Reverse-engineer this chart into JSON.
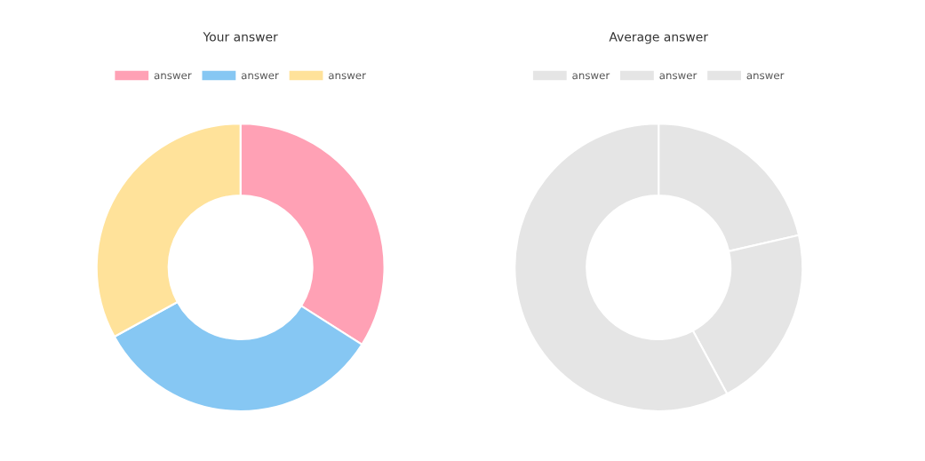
{
  "chart_data": [
    {
      "type": "donut",
      "title": "Your answer",
      "categories": [
        "answer",
        "answer",
        "answer"
      ],
      "values": [
        34,
        33,
        33
      ],
      "colors": [
        "#ffa1b5",
        "#86c7f3",
        "#ffe29a"
      ],
      "legend": "top"
    },
    {
      "type": "donut",
      "title": "Average answer",
      "categories": [
        "answer",
        "answer",
        "answer"
      ],
      "values": [
        21.4,
        20.7,
        57.9
      ],
      "colors": [
        "#e5e5e5",
        "#e5e5e5",
        "#e5e5e5"
      ],
      "legend": "top"
    }
  ]
}
